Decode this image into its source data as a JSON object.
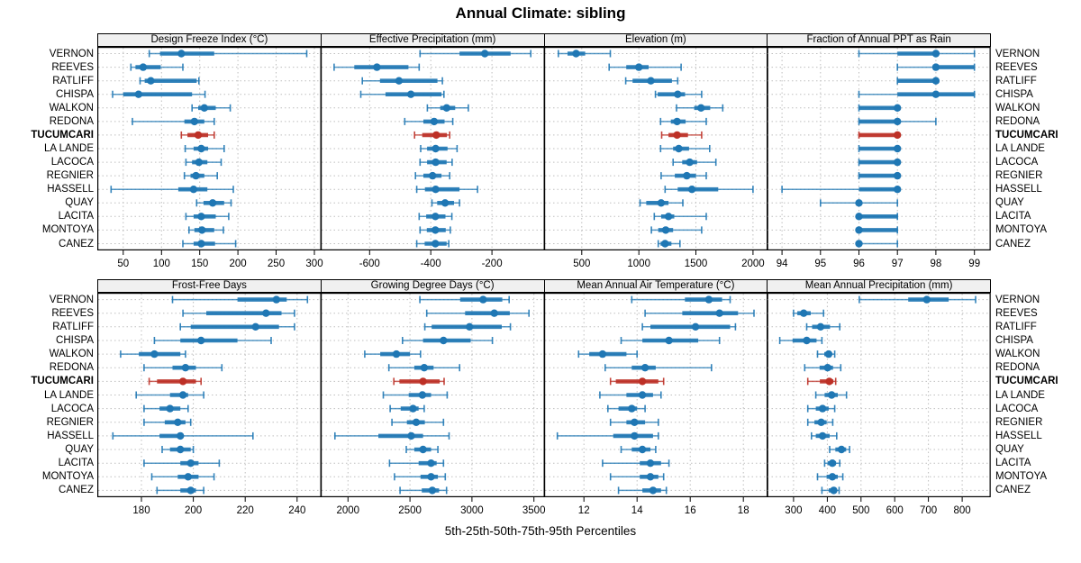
{
  "title": "Annual Climate: sibling",
  "caption": "5th-25th-50th-75th-95th Percentiles",
  "colors": {
    "series_blue": "#1f77b4",
    "highlight_red": "#bd3026",
    "grid": "#bfbfbf",
    "panel_border": "#000000",
    "strip_bg": "#f0f0f0"
  },
  "chart_data": {
    "type": "dotplot-interval",
    "percentile_labels": [
      "5th",
      "25th",
      "50th",
      "75th",
      "95th"
    ],
    "legend_note": "each row shows 5th-25th-50th-75th-95th percentiles: thin whisker with end caps (5th-95th), thick bar (25th-75th), dot (50th)",
    "highlight_station": "TUCUMCARI",
    "stations": [
      "VERNON",
      "REEVES",
      "RATLIFF",
      "CHISPA",
      "WALKON",
      "REDONA",
      "TUCUMCARI",
      "LA LANDE",
      "LACOCA",
      "REGNIER",
      "HASSELL",
      "QUAY",
      "LACITA",
      "MONTOYA",
      "CANEZ"
    ],
    "panels": [
      {
        "row": 0,
        "col": 0,
        "title": "Design Freeze Index (°C)",
        "xlim": [
          16,
          308
        ],
        "ticks": [
          50,
          100,
          150,
          200,
          250,
          300
        ],
        "values": [
          [
            84,
            98,
            126,
            169,
            290
          ],
          [
            60,
            66,
            76,
            99,
            128
          ],
          [
            72,
            78,
            86,
            146,
            149
          ],
          [
            36,
            50,
            70,
            140,
            157
          ],
          [
            140,
            148,
            156,
            171,
            190
          ],
          [
            62,
            130,
            143,
            156,
            169
          ],
          [
            126,
            134,
            148,
            161,
            169
          ],
          [
            131,
            142,
            152,
            161,
            182
          ],
          [
            132,
            140,
            149,
            160,
            178
          ],
          [
            130,
            138,
            145,
            156,
            173
          ],
          [
            34,
            122,
            142,
            160,
            194
          ],
          [
            146,
            155,
            167,
            182,
            191
          ],
          [
            132,
            142,
            152,
            171,
            188
          ],
          [
            136,
            143,
            153,
            169,
            181
          ],
          [
            128,
            142,
            152,
            170,
            197
          ]
        ]
      },
      {
        "row": 0,
        "col": 1,
        "title": "Effective Precipitation (mm)",
        "xlim": [
          -760,
          -30
        ],
        "ticks": [
          -600,
          -400,
          -200
        ],
        "values": [
          [
            -435,
            -306,
            -223,
            -139,
            -73
          ],
          [
            -716,
            -650,
            -576,
            -473,
            -438
          ],
          [
            -624,
            -566,
            -504,
            -378,
            -362
          ],
          [
            -629,
            -548,
            -465,
            -365,
            -357
          ],
          [
            -411,
            -369,
            -348,
            -320,
            -277
          ],
          [
            -485,
            -424,
            -389,
            -355,
            -328
          ],
          [
            -453,
            -428,
            -382,
            -347,
            -338
          ],
          [
            -433,
            -412,
            -384,
            -345,
            -314
          ],
          [
            -435,
            -412,
            -384,
            -348,
            -330
          ],
          [
            -450,
            -424,
            -394,
            -365,
            -338
          ],
          [
            -446,
            -419,
            -384,
            -306,
            -247
          ],
          [
            -396,
            -379,
            -353,
            -324,
            -306
          ],
          [
            -438,
            -415,
            -385,
            -352,
            -331
          ],
          [
            -435,
            -413,
            -385,
            -351,
            -336
          ],
          [
            -446,
            -420,
            -385,
            -348,
            -341
          ]
        ]
      },
      {
        "row": 0,
        "col": 2,
        "title": "Elevation (m)",
        "xlim": [
          170,
          2125
        ],
        "ticks": [
          500,
          1000,
          1500,
          2000
        ],
        "values": [
          [
            295,
            375,
            450,
            530,
            750
          ],
          [
            740,
            890,
            1000,
            1085,
            1370
          ],
          [
            885,
            945,
            1105,
            1290,
            1340
          ],
          [
            1145,
            1165,
            1340,
            1405,
            1550
          ],
          [
            1330,
            1485,
            1545,
            1625,
            1735
          ],
          [
            1190,
            1280,
            1335,
            1410,
            1590
          ],
          [
            1200,
            1260,
            1335,
            1430,
            1550
          ],
          [
            1190,
            1300,
            1350,
            1440,
            1620
          ],
          [
            1300,
            1380,
            1445,
            1510,
            1675
          ],
          [
            1195,
            1315,
            1420,
            1500,
            1590
          ],
          [
            1230,
            1340,
            1465,
            1695,
            2000
          ],
          [
            1010,
            1065,
            1195,
            1260,
            1385
          ],
          [
            1135,
            1195,
            1260,
            1310,
            1590
          ],
          [
            1110,
            1170,
            1235,
            1300,
            1550
          ],
          [
            1170,
            1190,
            1230,
            1285,
            1360
          ]
        ]
      },
      {
        "row": 0,
        "col": 3,
        "title": "Fraction of Annual PPT as Rain",
        "xlim": [
          93.6,
          99.4
        ],
        "ticks": [
          94,
          95,
          96,
          97,
          98,
          99
        ],
        "values": [
          [
            96,
            97,
            98,
            98,
            99
          ],
          [
            97,
            98,
            98,
            99,
            99
          ],
          [
            97,
            97,
            98,
            98,
            98
          ],
          [
            96,
            97,
            98,
            99,
            99
          ],
          [
            96,
            96,
            97,
            97,
            97
          ],
          [
            96,
            96,
            97,
            97,
            98
          ],
          [
            96,
            96,
            97,
            97,
            97
          ],
          [
            96,
            96,
            97,
            97,
            97
          ],
          [
            96,
            96,
            97,
            97,
            97
          ],
          [
            96,
            96,
            97,
            97,
            97
          ],
          [
            94,
            96,
            97,
            97,
            97
          ],
          [
            95,
            96,
            96,
            96,
            97
          ],
          [
            96,
            96,
            96,
            97,
            97
          ],
          [
            96,
            96,
            96,
            97,
            97
          ],
          [
            96,
            96,
            96,
            96,
            97
          ]
        ]
      },
      {
        "row": 1,
        "col": 0,
        "title": "Frost-Free Days",
        "xlim": [
          163,
          249
        ],
        "ticks": [
          180,
          200,
          220,
          240
        ],
        "values": [
          [
            192,
            217,
            232,
            236,
            244
          ],
          [
            196,
            205,
            228,
            234,
            239
          ],
          [
            195,
            199,
            224,
            233,
            239
          ],
          [
            185,
            195,
            203,
            217,
            230
          ],
          [
            172,
            179,
            185,
            195,
            197
          ],
          [
            181,
            192,
            197,
            201,
            211
          ],
          [
            183,
            186,
            196,
            201,
            203
          ],
          [
            178,
            191,
            196,
            198,
            204
          ],
          [
            181,
            187,
            191,
            195,
            198
          ],
          [
            181,
            189,
            194,
            197,
            199
          ],
          [
            169,
            187,
            195,
            196,
            223
          ],
          [
            188,
            191,
            195,
            199,
            200
          ],
          [
            181,
            195,
            199,
            202,
            210
          ],
          [
            184,
            194,
            198,
            202,
            208
          ],
          [
            186,
            195,
            199,
            201,
            204
          ]
        ]
      },
      {
        "row": 1,
        "col": 1,
        "title": "Growing Degree Days (°C)",
        "xlim": [
          1780,
          3580
        ],
        "ticks": [
          2000,
          2500,
          3000,
          3500
        ],
        "values": [
          [
            2580,
            2905,
            3090,
            3245,
            3300
          ],
          [
            2635,
            2945,
            3180,
            3305,
            3460
          ],
          [
            2620,
            2675,
            2980,
            3240,
            3310
          ],
          [
            2440,
            2605,
            2770,
            2990,
            3165
          ],
          [
            2135,
            2260,
            2390,
            2500,
            2585
          ],
          [
            2330,
            2535,
            2615,
            2690,
            2900
          ],
          [
            2370,
            2415,
            2605,
            2740,
            2775
          ],
          [
            2285,
            2490,
            2600,
            2670,
            2800
          ],
          [
            2340,
            2425,
            2525,
            2570,
            2615
          ],
          [
            2355,
            2475,
            2550,
            2620,
            2770
          ],
          [
            1895,
            2245,
            2510,
            2605,
            2815
          ],
          [
            2470,
            2535,
            2605,
            2670,
            2725
          ],
          [
            2335,
            2570,
            2670,
            2715,
            2770
          ],
          [
            2375,
            2585,
            2670,
            2725,
            2785
          ],
          [
            2420,
            2595,
            2680,
            2735,
            2795
          ]
        ]
      },
      {
        "row": 1,
        "col": 2,
        "title": "Mean Annual Air Temperature (°C)",
        "xlim": [
          10.5,
          18.9
        ],
        "ticks": [
          12,
          14,
          16,
          18
        ],
        "values": [
          [
            13.8,
            15.8,
            16.7,
            17.2,
            17.5
          ],
          [
            14.3,
            15.7,
            17.1,
            17.8,
            18.4
          ],
          [
            14.2,
            14.5,
            16.2,
            17.5,
            17.7
          ],
          [
            13.4,
            14.2,
            15.2,
            16.3,
            17.1
          ],
          [
            11.8,
            12.2,
            12.7,
            13.6,
            14.0
          ],
          [
            12.8,
            13.8,
            14.3,
            14.7,
            16.8
          ],
          [
            13.0,
            13.2,
            14.2,
            14.8,
            15.0
          ],
          [
            12.6,
            13.6,
            14.2,
            14.6,
            14.9
          ],
          [
            12.9,
            13.3,
            13.8,
            14.0,
            14.3
          ],
          [
            13.0,
            13.6,
            13.9,
            14.3,
            14.8
          ],
          [
            11.0,
            13.1,
            13.9,
            14.6,
            14.8
          ],
          [
            13.4,
            13.8,
            14.2,
            14.5,
            14.7
          ],
          [
            12.7,
            14.1,
            14.5,
            14.9,
            15.2
          ],
          [
            13.0,
            14.1,
            14.5,
            14.8,
            15.0
          ],
          [
            13.3,
            14.2,
            14.6,
            14.9,
            15.1
          ]
        ]
      },
      {
        "row": 1,
        "col": 3,
        "title": "Mean Annual Precipitation (mm)",
        "xlim": [
          220,
          882
        ],
        "ticks": [
          300,
          400,
          500,
          600,
          700,
          800
        ],
        "values": [
          [
            495,
            640,
            695,
            760,
            840
          ],
          [
            300,
            311,
            330,
            351,
            389
          ],
          [
            339,
            355,
            380,
            408,
            437
          ],
          [
            259,
            297,
            339,
            368,
            384
          ],
          [
            371,
            391,
            404,
            413,
            422
          ],
          [
            333,
            377,
            401,
            417,
            440
          ],
          [
            342,
            378,
            406,
            418,
            425
          ],
          [
            366,
            392,
            413,
            431,
            457
          ],
          [
            342,
            366,
            386,
            404,
            422
          ],
          [
            342,
            362,
            382,
            398,
            416
          ],
          [
            353,
            366,
            386,
            407,
            428
          ],
          [
            407,
            424,
            442,
            456,
            466
          ],
          [
            392,
            401,
            415,
            426,
            437
          ],
          [
            371,
            398,
            415,
            431,
            446
          ],
          [
            384,
            404,
            419,
            428,
            435
          ]
        ]
      }
    ]
  }
}
